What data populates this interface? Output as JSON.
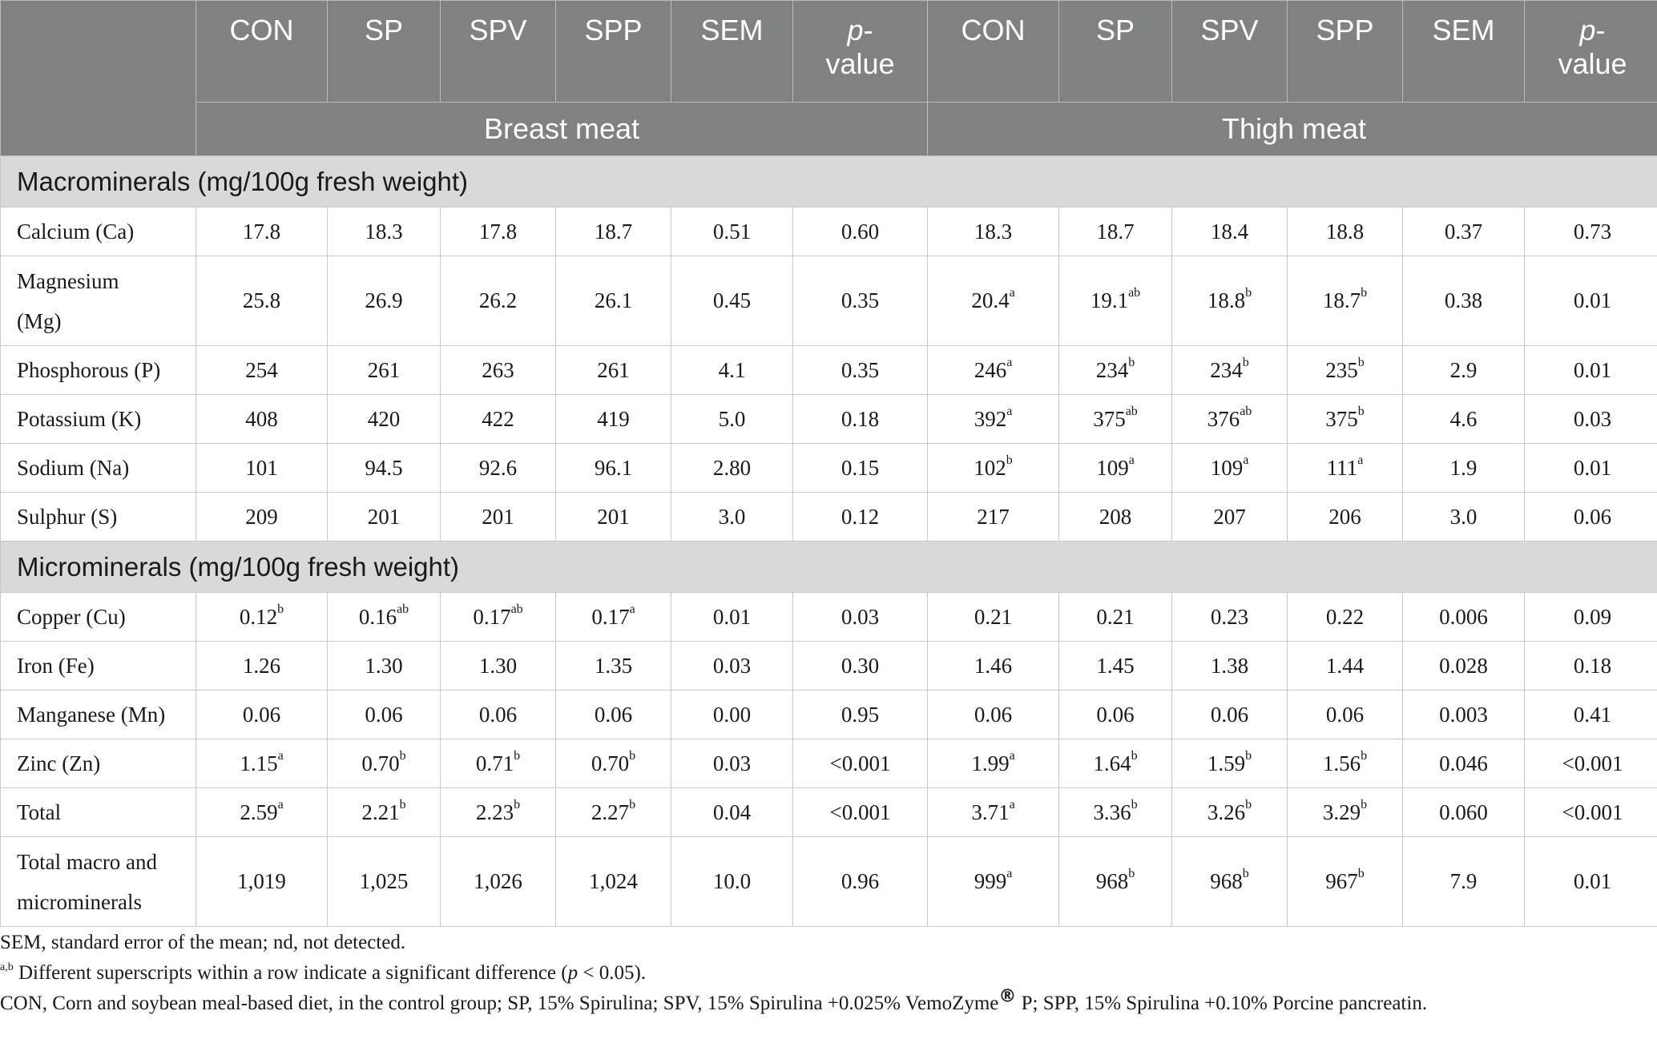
{
  "header": {
    "cols": [
      "CON",
      "SP",
      "SPV",
      "SPP",
      "SEM"
    ],
    "pvalue_p": "p",
    "pvalue_rest": "-",
    "pvalue_line2": "value",
    "group_breast": "Breast meat",
    "group_thigh": "Thigh meat"
  },
  "sections": {
    "macro": "Macrominerals (mg/100g fresh weight)",
    "micro": "Microminerals (mg/100g fresh weight)"
  },
  "rows": {
    "ca": {
      "label": "Calcium (Ca)",
      "v": [
        [
          "17.8",
          ""
        ],
        [
          "18.3",
          ""
        ],
        [
          "17.8",
          ""
        ],
        [
          "18.7",
          ""
        ],
        [
          "0.51",
          ""
        ],
        [
          "0.60",
          ""
        ],
        [
          "18.3",
          ""
        ],
        [
          "18.7",
          ""
        ],
        [
          "18.4",
          ""
        ],
        [
          "18.8",
          ""
        ],
        [
          "0.37",
          ""
        ],
        [
          "0.73",
          ""
        ]
      ]
    },
    "mg": {
      "label_l1": "Magnesium",
      "label_l2": "(Mg)",
      "v": [
        [
          "25.8",
          ""
        ],
        [
          "26.9",
          ""
        ],
        [
          "26.2",
          ""
        ],
        [
          "26.1",
          ""
        ],
        [
          "0.45",
          ""
        ],
        [
          "0.35",
          ""
        ],
        [
          "20.4",
          "a"
        ],
        [
          "19.1",
          "ab"
        ],
        [
          "18.8",
          "b"
        ],
        [
          "18.7",
          "b"
        ],
        [
          "0.38",
          ""
        ],
        [
          "0.01",
          ""
        ]
      ]
    },
    "p": {
      "label": "Phosphorous (P)",
      "v": [
        [
          "254",
          ""
        ],
        [
          "261",
          ""
        ],
        [
          "263",
          ""
        ],
        [
          "261",
          ""
        ],
        [
          "4.1",
          ""
        ],
        [
          "0.35",
          ""
        ],
        [
          "246",
          "a"
        ],
        [
          "234",
          "b"
        ],
        [
          "234",
          "b"
        ],
        [
          "235",
          "b"
        ],
        [
          "2.9",
          ""
        ],
        [
          "0.01",
          ""
        ]
      ]
    },
    "k": {
      "label": "Potassium (K)",
      "v": [
        [
          "408",
          ""
        ],
        [
          "420",
          ""
        ],
        [
          "422",
          ""
        ],
        [
          "419",
          ""
        ],
        [
          "5.0",
          ""
        ],
        [
          "0.18",
          ""
        ],
        [
          "392",
          "a"
        ],
        [
          "375",
          "ab"
        ],
        [
          "376",
          "ab"
        ],
        [
          "375",
          "b"
        ],
        [
          "4.6",
          ""
        ],
        [
          "0.03",
          ""
        ]
      ]
    },
    "na": {
      "label": "Sodium (Na)",
      "v": [
        [
          "101",
          ""
        ],
        [
          "94.5",
          ""
        ],
        [
          "92.6",
          ""
        ],
        [
          "96.1",
          ""
        ],
        [
          "2.80",
          ""
        ],
        [
          "0.15",
          ""
        ],
        [
          "102",
          "b"
        ],
        [
          "109",
          "a"
        ],
        [
          "109",
          "a"
        ],
        [
          "111",
          "a"
        ],
        [
          "1.9",
          ""
        ],
        [
          "0.01",
          ""
        ]
      ]
    },
    "s": {
      "label": "Sulphur (S)",
      "v": [
        [
          "209",
          ""
        ],
        [
          "201",
          ""
        ],
        [
          "201",
          ""
        ],
        [
          "201",
          ""
        ],
        [
          "3.0",
          ""
        ],
        [
          "0.12",
          ""
        ],
        [
          "217",
          ""
        ],
        [
          "208",
          ""
        ],
        [
          "207",
          ""
        ],
        [
          "206",
          ""
        ],
        [
          "3.0",
          ""
        ],
        [
          "0.06",
          ""
        ]
      ]
    },
    "cu": {
      "label": "Copper (Cu)",
      "v": [
        [
          "0.12",
          "b"
        ],
        [
          "0.16",
          "ab"
        ],
        [
          "0.17",
          "ab"
        ],
        [
          "0.17",
          "a"
        ],
        [
          "0.01",
          ""
        ],
        [
          "0.03",
          ""
        ],
        [
          "0.21",
          ""
        ],
        [
          "0.21",
          ""
        ],
        [
          "0.23",
          ""
        ],
        [
          "0.22",
          ""
        ],
        [
          "0.006",
          ""
        ],
        [
          "0.09",
          ""
        ]
      ]
    },
    "fe": {
      "label": "Iron (Fe)",
      "v": [
        [
          "1.26",
          ""
        ],
        [
          "1.30",
          ""
        ],
        [
          "1.30",
          ""
        ],
        [
          "1.35",
          ""
        ],
        [
          "0.03",
          ""
        ],
        [
          "0.30",
          ""
        ],
        [
          "1.46",
          ""
        ],
        [
          "1.45",
          ""
        ],
        [
          "1.38",
          ""
        ],
        [
          "1.44",
          ""
        ],
        [
          "0.028",
          ""
        ],
        [
          "0.18",
          ""
        ]
      ]
    },
    "mn": {
      "label": "Manganese (Mn)",
      "v": [
        [
          "0.06",
          ""
        ],
        [
          "0.06",
          ""
        ],
        [
          "0.06",
          ""
        ],
        [
          "0.06",
          ""
        ],
        [
          "0.00",
          ""
        ],
        [
          "0.95",
          ""
        ],
        [
          "0.06",
          ""
        ],
        [
          "0.06",
          ""
        ],
        [
          "0.06",
          ""
        ],
        [
          "0.06",
          ""
        ],
        [
          "0.003",
          ""
        ],
        [
          "0.41",
          ""
        ]
      ]
    },
    "zn": {
      "label": "Zinc (Zn)",
      "v": [
        [
          "1.15",
          "a"
        ],
        [
          "0.70",
          "b"
        ],
        [
          "0.71",
          "b"
        ],
        [
          "0.70",
          "b"
        ],
        [
          "0.03",
          ""
        ],
        [
          "<0.001",
          ""
        ],
        [
          "1.99",
          "a"
        ],
        [
          "1.64",
          "b"
        ],
        [
          "1.59",
          "b"
        ],
        [
          "1.56",
          "b"
        ],
        [
          "0.046",
          ""
        ],
        [
          "<0.001",
          ""
        ]
      ]
    },
    "total": {
      "label": "Total",
      "v": [
        [
          "2.59",
          "a"
        ],
        [
          "2.21",
          "b"
        ],
        [
          "2.23",
          "b"
        ],
        [
          "2.27",
          "b"
        ],
        [
          "0.04",
          ""
        ],
        [
          "<0.001",
          ""
        ],
        [
          "3.71",
          "a"
        ],
        [
          "3.36",
          "b"
        ],
        [
          "3.26",
          "b"
        ],
        [
          "3.29",
          "b"
        ],
        [
          "0.060",
          ""
        ],
        [
          "<0.001",
          ""
        ]
      ]
    },
    "grand": {
      "label_l1": "Total macro and",
      "label_l2": "microminerals",
      "v": [
        [
          "1,019",
          ""
        ],
        [
          "1,025",
          ""
        ],
        [
          "1,026",
          ""
        ],
        [
          "1,024",
          ""
        ],
        [
          "10.0",
          ""
        ],
        [
          "0.96",
          ""
        ],
        [
          "999",
          "a"
        ],
        [
          "968",
          "b"
        ],
        [
          "968",
          "b"
        ],
        [
          "967",
          "b"
        ],
        [
          "7.9",
          ""
        ],
        [
          "0.01",
          ""
        ]
      ]
    }
  },
  "footnotes": {
    "f1": "SEM, standard error of the mean; nd, not detected.",
    "f2_sup": "a,b",
    "f2_a": " Different superscripts within a row indicate a significant difference (",
    "f2_p": "p",
    "f2_b": " < 0.05).",
    "f3_a": "CON, Corn and soybean meal-based diet, in the control group; SP, 15% Spirulina; SPV, 15% Spirulina +0.025% VemoZyme",
    "f3_reg": "®",
    "f3_b": " P; SPP, 15% Spirulina +0.10% Porcine pancreatin."
  }
}
